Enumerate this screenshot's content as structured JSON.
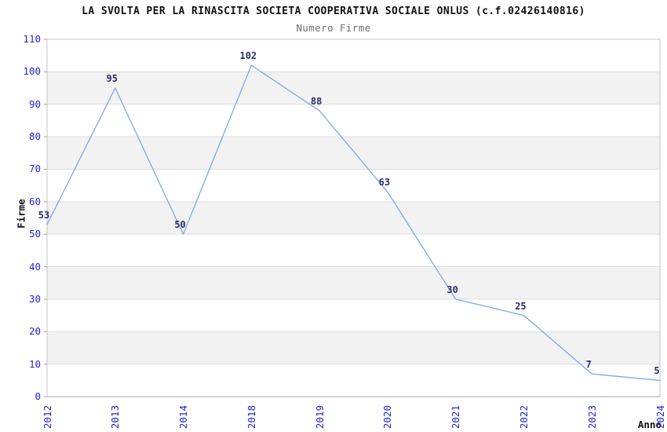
{
  "page": {
    "background": "#ffffff"
  },
  "chart_data": {
    "type": "line",
    "title": "LA SVOLTA PER LA RINASCITA SOCIETA COOPERATIVA SOCIALE ONLUS (c.f.02426140816)",
    "subtitle": "Numero Firme",
    "xlabel": "Anno",
    "ylabel": "Firme",
    "categories": [
      "2012",
      "2013",
      "2014",
      "2018",
      "2019",
      "2020",
      "2021",
      "2022",
      "2023",
      "2024"
    ],
    "series": [
      {
        "name": "Numero Firme",
        "values": [
          53,
          95,
          50,
          102,
          88,
          63,
          30,
          25,
          7,
          5
        ]
      }
    ],
    "ylim": [
      0,
      110
    ],
    "y_ticks": [
      0,
      10,
      20,
      30,
      40,
      50,
      60,
      70,
      80,
      90,
      100,
      110
    ],
    "x_tick_rotation": -90,
    "grid": "horizontal-bands",
    "legend": "none",
    "markers": "none",
    "colors": {
      "line": "#7aaae4",
      "tick_text": "#2424ce",
      "data_label": "#2b2b6e",
      "band": "#f2f2f2",
      "gridline": "#dedede",
      "frame": "#c6c6c6",
      "axis_line": "#a4a4a4",
      "tick_mark": "#999999",
      "title": "#111111",
      "subtitle": "#6e6e6e",
      "axis_title": "#111111",
      "background": "#ffffff"
    }
  }
}
